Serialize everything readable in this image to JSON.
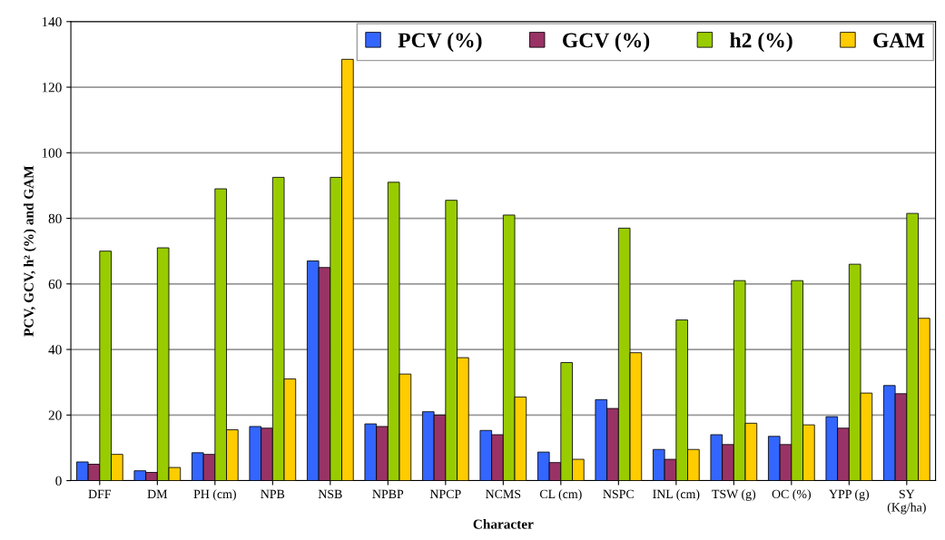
{
  "chart_data": {
    "type": "bar",
    "xlabel": "Character",
    "ylabel": "PCV, GCV, h² (%) and GAM",
    "categories": [
      "DFF",
      "DM",
      "PH (cm)",
      "NPB",
      "NSB",
      "NPBP",
      "NPCP",
      "NCMS",
      "CL (cm)",
      "NSPC",
      "INL (cm)",
      "TSW (g)",
      "OC (%)",
      "YPP (g)",
      "SY\n(Kg/ha)"
    ],
    "series": [
      {
        "name": "PCV (%)",
        "color": "#3366ff",
        "values": [
          5.7,
          3,
          8.5,
          16.5,
          67,
          17.3,
          21,
          15.3,
          8.7,
          24.7,
          9.5,
          14,
          13.5,
          19.5,
          29
        ]
      },
      {
        "name": "GCV (%)",
        "color": "#993366",
        "values": [
          5,
          2.5,
          8,
          16,
          65,
          16.5,
          20,
          14,
          5.5,
          22,
          6.5,
          11,
          11,
          16,
          26.5
        ]
      },
      {
        "name": "h2 (%)",
        "color": "#99cc00",
        "values": [
          70,
          71,
          89,
          92.5,
          92.5,
          91,
          85.5,
          81,
          36,
          77,
          49,
          61,
          61,
          66,
          81.5
        ]
      },
      {
        "name": "GAM",
        "color": "#ffcc00",
        "values": [
          8,
          4,
          15.5,
          31,
          128.5,
          32.5,
          37.5,
          25.5,
          6.5,
          39,
          9.5,
          17.5,
          17,
          26.7,
          49.5
        ]
      }
    ],
    "ylim": [
      0,
      140
    ],
    "yticks": [
      0,
      20,
      40,
      60,
      80,
      100,
      120,
      140
    ],
    "grid": "y",
    "legend": "top right"
  }
}
